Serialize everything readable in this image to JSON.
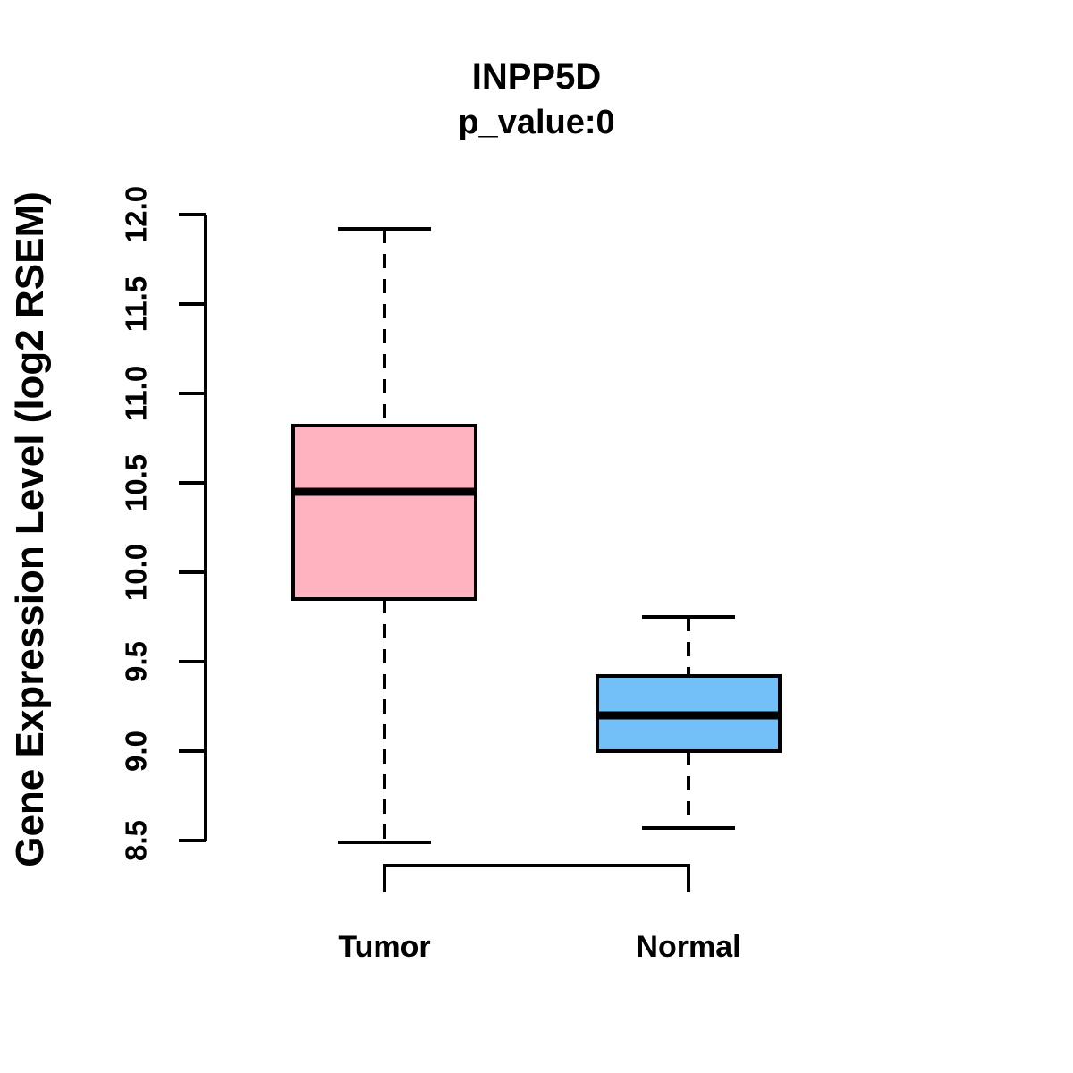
{
  "chart_data": {
    "type": "boxplot",
    "title": "INPP5D",
    "subtitle": "p_value:0",
    "ylabel": "Gene Expression Level (log2 RSEM)",
    "xlabel": "",
    "categories": [
      "Tumor",
      "Normal"
    ],
    "series": [
      {
        "name": "Tumor",
        "fill_color": "#FFB3C1",
        "whisker_min": 8.49,
        "q1": 9.85,
        "median": 10.45,
        "q3": 10.82,
        "whisker_max": 11.92,
        "outliers": []
      },
      {
        "name": "Normal",
        "fill_color": "#73BFF7",
        "whisker_min": 8.57,
        "q1": 9.0,
        "median": 9.2,
        "q3": 9.42,
        "whisker_max": 9.75,
        "outliers": []
      }
    ],
    "ylim": [
      8.5,
      12.0
    ],
    "ytick_labels": [
      "8.5",
      "9.0",
      "9.5",
      "10.0",
      "10.5",
      "11.0",
      "11.5",
      "12.0"
    ],
    "grid": false,
    "legend": "none",
    "line_color": "#000000",
    "background_color": "#ffffff"
  }
}
